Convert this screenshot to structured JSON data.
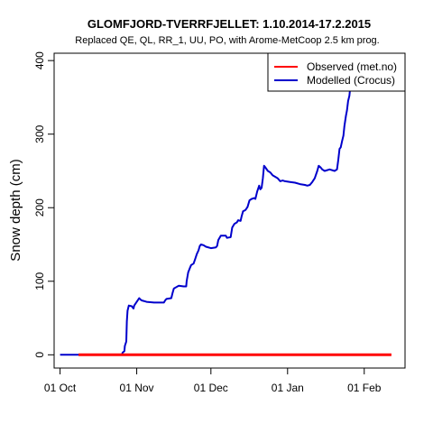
{
  "chart_data": {
    "type": "line",
    "title": "GLOMFJORD-TVERRFJELLET: 1.10.2014-17.2.2015",
    "subtitle": "Replaced QE, QL, RR_1, UU, PO,  with Arome-MetCoop 2.5 km prog.",
    "xlabel": "",
    "ylabel": "Snow depth (cm)",
    "x_ticks": [
      "01 Oct",
      "01 Nov",
      "01 Dec",
      "01 Jan",
      "01 Feb"
    ],
    "y_ticks": [
      "0",
      "100",
      "200",
      "300",
      "400"
    ],
    "ylim": [
      -18,
      410
    ],
    "xlim_days": [
      -2.4,
      139.5
    ],
    "grid": false,
    "legend_position": "top-right",
    "series": [
      {
        "name": "Observed (met.no)",
        "color": "#ff0000",
        "points": [
          [
            7.5,
            0
          ],
          [
            134,
            0
          ]
        ]
      },
      {
        "name": "Modelled (Crocus)",
        "color": "#0000cc",
        "points": [
          [
            0,
            0
          ],
          [
            25,
            0
          ],
          [
            25.3,
            3
          ],
          [
            26,
            5
          ],
          [
            26.2,
            12
          ],
          [
            26.8,
            18
          ],
          [
            27,
            45
          ],
          [
            27.3,
            60
          ],
          [
            27.8,
            67
          ],
          [
            29,
            66
          ],
          [
            29.7,
            63
          ],
          [
            30,
            67
          ],
          [
            31.2,
            73
          ],
          [
            32,
            77
          ],
          [
            32.6,
            75
          ],
          [
            33,
            74
          ],
          [
            35,
            72
          ],
          [
            38,
            71
          ],
          [
            42,
            71
          ],
          [
            42.5,
            74
          ],
          [
            43,
            76
          ],
          [
            45,
            77
          ],
          [
            45.5,
            84
          ],
          [
            46,
            90
          ],
          [
            47,
            92
          ],
          [
            48,
            94
          ],
          [
            50,
            93
          ],
          [
            51,
            93
          ],
          [
            51.2,
            100
          ],
          [
            51.8,
            112
          ],
          [
            52.5,
            118
          ],
          [
            53,
            122
          ],
          [
            54,
            124
          ],
          [
            54.6,
            130
          ],
          [
            55.3,
            137
          ],
          [
            56,
            142
          ],
          [
            56.5,
            148
          ],
          [
            57,
            150
          ],
          [
            58,
            149
          ],
          [
            59,
            147
          ],
          [
            61,
            145
          ],
          [
            63,
            146
          ],
          [
            63.5,
            148
          ],
          [
            64,
            156
          ],
          [
            65,
            162
          ],
          [
            67,
            162
          ],
          [
            67.5,
            159
          ],
          [
            69,
            160
          ],
          [
            69.6,
            173
          ],
          [
            70.5,
            178
          ],
          [
            71.5,
            180
          ],
          [
            72,
            183
          ],
          [
            73,
            182
          ],
          [
            73.4,
            188
          ],
          [
            74,
            195
          ],
          [
            75,
            197
          ],
          [
            75.8,
            201
          ],
          [
            76.6,
            210
          ],
          [
            77.5,
            212
          ],
          [
            78.5,
            213
          ],
          [
            79,
            212
          ],
          [
            79.7,
            222
          ],
          [
            80.5,
            230
          ],
          [
            81,
            225
          ],
          [
            81.5,
            227
          ],
          [
            82,
            240
          ],
          [
            82.5,
            257
          ],
          [
            83,
            255
          ],
          [
            84,
            250
          ],
          [
            85,
            248
          ],
          [
            86,
            244
          ],
          [
            87,
            242
          ],
          [
            88,
            240
          ],
          [
            89,
            236
          ],
          [
            90,
            237
          ],
          [
            91,
            236
          ],
          [
            93,
            235
          ],
          [
            95,
            234
          ],
          [
            97,
            232
          ],
          [
            99,
            231
          ],
          [
            100,
            230
          ],
          [
            101,
            231
          ],
          [
            102,
            235
          ],
          [
            103,
            240
          ],
          [
            104,
            250
          ],
          [
            104.6,
            257
          ],
          [
            105.3,
            255
          ],
          [
            106,
            252
          ],
          [
            107,
            250
          ],
          [
            109,
            252
          ],
          [
            111,
            250
          ],
          [
            112,
            252
          ],
          [
            112.5,
            265
          ],
          [
            113,
            280
          ],
          [
            113.5,
            282
          ],
          [
            114,
            290
          ],
          [
            114.6,
            298
          ],
          [
            115,
            311
          ],
          [
            115.6,
            325
          ],
          [
            116,
            332
          ],
          [
            116.5,
            345
          ],
          [
            117,
            352
          ],
          [
            117.5,
            368
          ],
          [
            118,
            372
          ],
          [
            118.5,
            375
          ],
          [
            119,
            376
          ],
          [
            119.5,
            372
          ],
          [
            120,
            367
          ],
          [
            120.3,
            374
          ],
          [
            120.8,
            365
          ],
          [
            121.5,
            360
          ],
          [
            122,
            362
          ]
        ]
      }
    ]
  }
}
